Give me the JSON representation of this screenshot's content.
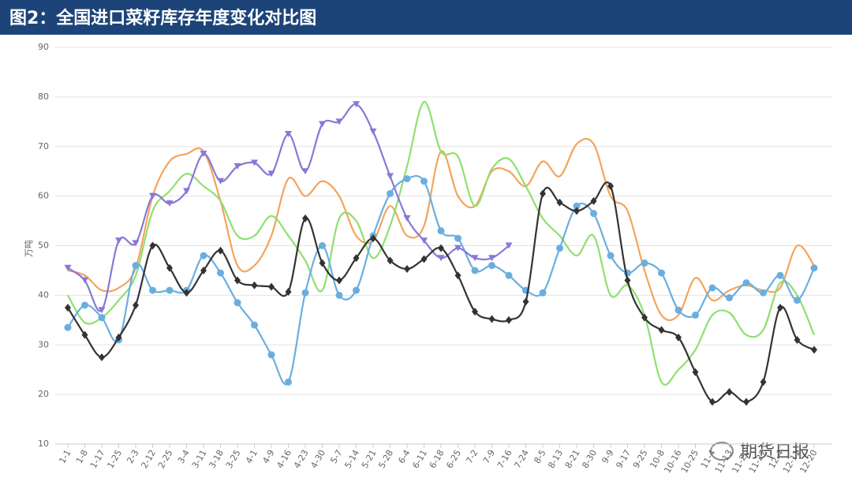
{
  "chart_data": {
    "type": "line",
    "title": "图2：全国进口菜籽库存年度变化对比图",
    "y_label": "万吨",
    "watermark": "期货日报",
    "categories": [
      "1-1",
      "1-8",
      "1-17",
      "1-25",
      "2-3",
      "2-12",
      "2-25",
      "3-4",
      "3-11",
      "3-18",
      "3-25",
      "4-1",
      "4-9",
      "4-16",
      "4-23",
      "4-30",
      "5-7",
      "5-14",
      "5-21",
      "5-28",
      "6-4",
      "6-11",
      "6-18",
      "6-25",
      "7-2",
      "7-9",
      "7-16",
      "7-24",
      "8-5",
      "8-13",
      "8-21",
      "8-30",
      "9-9",
      "9-17",
      "9-25",
      "10-8",
      "10-16",
      "10-25",
      "11-4",
      "11-13",
      "11-20",
      "11-27",
      "12-4",
      "12-11",
      "12-20"
    ],
    "ylim": [
      10,
      90
    ],
    "yticks": [
      10,
      20,
      30,
      40,
      50,
      60,
      70,
      80,
      90
    ],
    "grid": true,
    "smooth": true,
    "series": [
      {
        "color": "#f4a45c",
        "marker": "none",
        "values": [
          45,
          44,
          41,
          41.5,
          45.5,
          60,
          67,
          68.5,
          69,
          59,
          46,
          46,
          52,
          63.5,
          60,
          63,
          60,
          52,
          51,
          58,
          52,
          54,
          69,
          60,
          58,
          65,
          65,
          62,
          67,
          64,
          70.5,
          70.5,
          60,
          57,
          45,
          36,
          36,
          43.5,
          39,
          41,
          42,
          41,
          41.5,
          50,
          46
        ]
      },
      {
        "color": "#8ee070",
        "marker": "none",
        "values": [
          40,
          34.5,
          35.5,
          39,
          44,
          57,
          61,
          64.5,
          62,
          59,
          52,
          52,
          56,
          52,
          47,
          41,
          55.5,
          55,
          47.5,
          54,
          66,
          79,
          69,
          68,
          58,
          65.5,
          67.5,
          62,
          55.5,
          52,
          48,
          52,
          40,
          42,
          36,
          22.5,
          25,
          29,
          36,
          36.5,
          32,
          33,
          42.5,
          40,
          32
        ]
      },
      {
        "color": "#6aaee0",
        "marker": "circle",
        "values": [
          33.5,
          38,
          35.5,
          31,
          46,
          41,
          41,
          41,
          48,
          44.5,
          38.5,
          34,
          28,
          22.5,
          40.5,
          50,
          40,
          41,
          52,
          60.5,
          63.5,
          63,
          53,
          51.5,
          45,
          46,
          44,
          41,
          40.5,
          49.5,
          58,
          56.5,
          48,
          44.5,
          46.5,
          44.5,
          37,
          36,
          41.5,
          39.5,
          42.5,
          40.5,
          44,
          39,
          45.5
        ]
      },
      {
        "color": "#8878d8",
        "marker": "triangle",
        "values": [
          45.5,
          43,
          37,
          51,
          50.5,
          60,
          58.5,
          61,
          68.5,
          63,
          66,
          66.7,
          64.5,
          72.5,
          65,
          74.5,
          75,
          78.5,
          73,
          64,
          55.5,
          51,
          47.5,
          49.5,
          47.5,
          47.5,
          50,
          null,
          null,
          null,
          null,
          null,
          null,
          null,
          null,
          null,
          null,
          null,
          null,
          null,
          null,
          null,
          null,
          null,
          null
        ]
      },
      {
        "color": "#333333",
        "marker": "diamond",
        "values": [
          37.5,
          32,
          27.5,
          31.5,
          38,
          50,
          45.5,
          40.5,
          45,
          49,
          43,
          42,
          41.7,
          40.7,
          55.5,
          46.5,
          43,
          47.5,
          51.5,
          47,
          45.3,
          47.3,
          49.5,
          44,
          36.7,
          35.2,
          35,
          38.7,
          60.5,
          58.7,
          57,
          59,
          62,
          43,
          35.5,
          33,
          31.5,
          24.5,
          18.5,
          20.5,
          18.5,
          22.5,
          37.5,
          31,
          29
        ]
      }
    ]
  }
}
